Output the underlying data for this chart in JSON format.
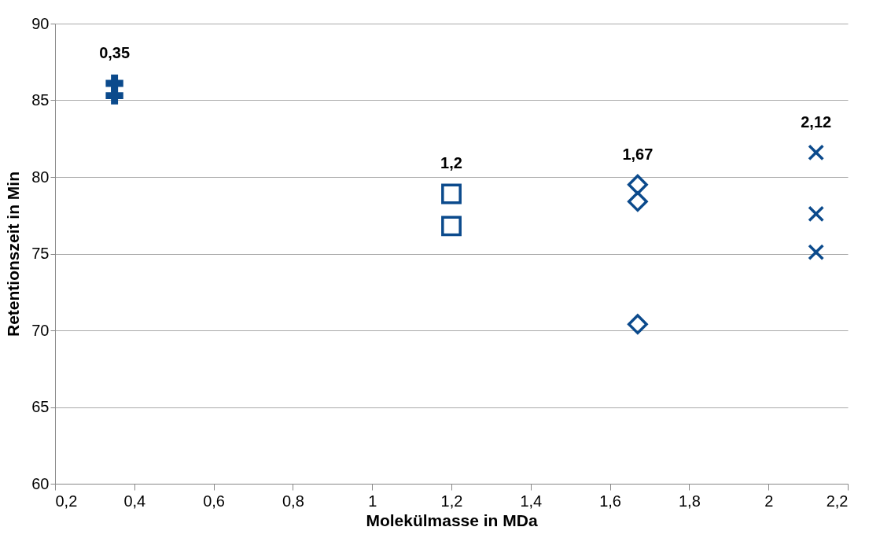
{
  "chart_data": {
    "type": "scatter",
    "xlabel": "Molekülmasse in MDa",
    "ylabel": "Retentionszeit in Min",
    "xlim": [
      0.2,
      2.2
    ],
    "xticks": [
      {
        "value": 0.2,
        "label": "0,2"
      },
      {
        "value": 0.4,
        "label": "0,4"
      },
      {
        "value": 0.6,
        "label": "0,6"
      },
      {
        "value": 0.8,
        "label": "0,8"
      },
      1,
      {
        "value": 1.2,
        "label": "1,2"
      },
      {
        "value": 1.4,
        "label": "1,4"
      },
      {
        "value": 1.6,
        "label": "1,6"
      },
      {
        "value": 1.8,
        "label": "1,8"
      },
      2,
      {
        "value": 2.2,
        "label": "2,2"
      }
    ],
    "ylim": [
      60,
      90
    ],
    "yticks": [
      60,
      65,
      70,
      75,
      80,
      85,
      90
    ],
    "grid": "y",
    "series": [
      {
        "color": "#0b4a8c",
        "marker": "cross",
        "x": [
          0.35,
          0.35
        ],
        "values": [
          86.1,
          85.3
        ]
      },
      {
        "color": "#0b4a8c",
        "marker": "square",
        "x": [
          1.2,
          1.2
        ],
        "values": [
          78.9,
          76.8
        ]
      },
      {
        "color": "#0b4a8c",
        "marker": "diamond",
        "x": [
          1.67,
          1.67,
          1.67
        ],
        "values": [
          79.5,
          78.4,
          70.4
        ]
      },
      {
        "color": "#0b4a8c",
        "marker": "x",
        "x": [
          2.12,
          2.12,
          2.12
        ],
        "values": [
          81.6,
          77.6,
          75.1
        ]
      }
    ],
    "annotations": [
      {
        "text": "0,35",
        "x": 0.35,
        "y": 86.1
      },
      {
        "text": "1,2",
        "x": 1.2,
        "y": 78.9
      },
      {
        "text": "1,67",
        "x": 1.67,
        "y": 79.5
      },
      {
        "text": "2,12",
        "x": 2.12,
        "y": 81.6
      }
    ]
  }
}
